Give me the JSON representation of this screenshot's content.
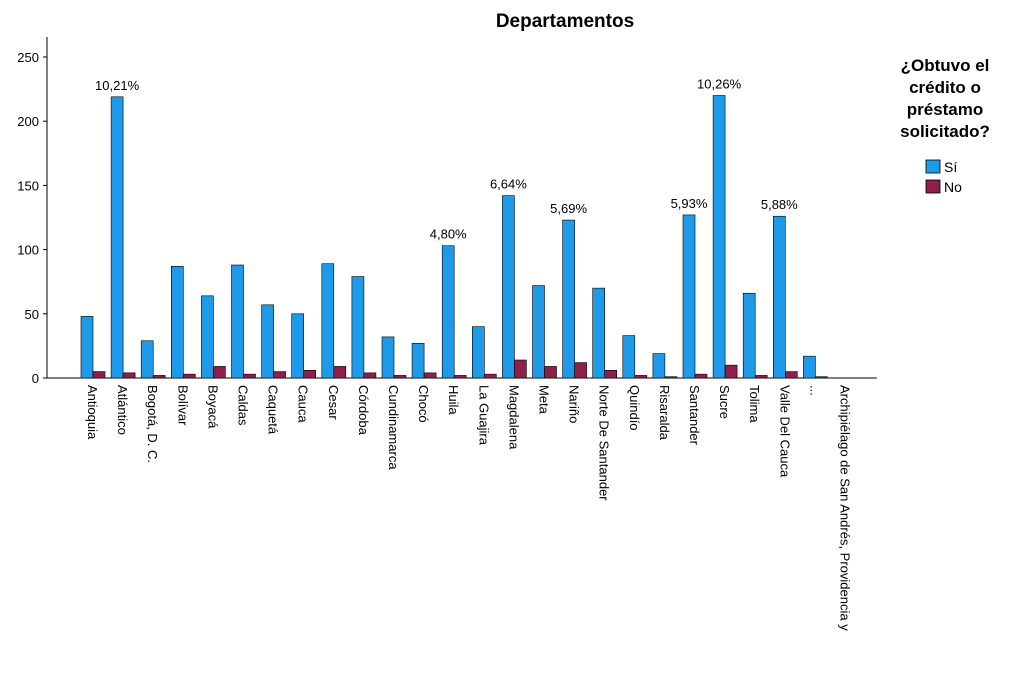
{
  "chart_data": {
    "type": "bar",
    "title": "Departamentos",
    "xlabel": "",
    "ylabel": "",
    "ylim": [
      0,
      250
    ],
    "yticks": [
      0,
      50,
      100,
      150,
      200,
      250
    ],
    "grid": false,
    "legend_position": "top-right",
    "legend_title_lines": [
      "¿Obtuvo el",
      "crédito o",
      "préstamo",
      "solicitado?"
    ],
    "categories": [
      "Antioquia",
      "Atlántico",
      "Bogotá, D. C.",
      "Bolívar",
      "Boyacá",
      "Caldas",
      "Caquetá",
      "Cauca",
      "Cesar",
      "Córdoba",
      "Cundinamarca",
      "Chocó",
      "Huila",
      "La Guajira",
      "Magdalena",
      "Meta",
      "Nariño",
      "Norte De Santander",
      "Quindío",
      "Risaralda",
      "Santander",
      "Sucre",
      "Tolima",
      "Valle Del Cauca",
      "...",
      "Archipiélago de San Andrés, Providencia y"
    ],
    "series": [
      {
        "name": "Sí",
        "color": "#1F9AE8",
        "values": [
          48,
          219,
          29,
          87,
          64,
          88,
          57,
          50,
          89,
          79,
          32,
          27,
          103,
          40,
          142,
          72,
          123,
          70,
          33,
          19,
          127,
          220,
          66,
          126,
          17,
          null
        ]
      },
      {
        "name": "No",
        "color": "#8E1E4A",
        "values": [
          5,
          4,
          2,
          3,
          9,
          3,
          5,
          6,
          9,
          4,
          2,
          4,
          2,
          3,
          14,
          9,
          12,
          6,
          2,
          1,
          3,
          10,
          2,
          5,
          1,
          null
        ]
      }
    ],
    "data_labels": [
      {
        "category_index": 1,
        "text": "10,21%"
      },
      {
        "category_index": 12,
        "text": "4,80%"
      },
      {
        "category_index": 14,
        "text": "6,64%"
      },
      {
        "category_index": 16,
        "text": "5,69%"
      },
      {
        "category_index": 20,
        "text": "5,93%"
      },
      {
        "category_index": 21,
        "text": "10,26%"
      },
      {
        "category_index": 23,
        "text": "5,88%"
      }
    ]
  }
}
